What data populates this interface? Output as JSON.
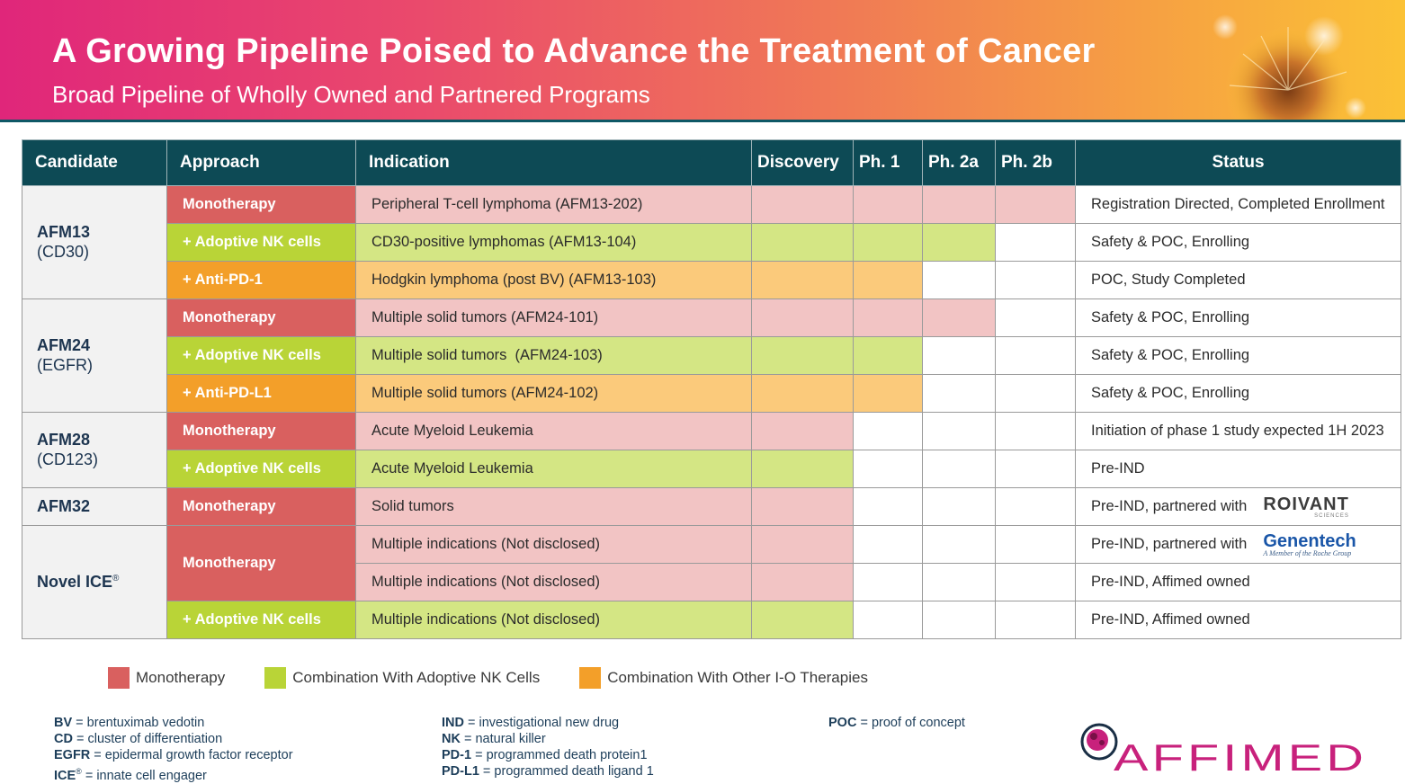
{
  "header": {
    "title": "A Growing Pipeline Poised to Advance the Treatment of Cancer",
    "subtitle": "Broad Pipeline of Wholly Owned and Partnered Programs"
  },
  "table": {
    "columns": {
      "candidate": "Candidate",
      "approach": "Approach",
      "indication": "Indication",
      "discovery": "Discovery",
      "ph1": "Ph. 1",
      "ph2a": "Ph. 2a",
      "ph2b": "Ph. 2b",
      "status": "Status"
    },
    "candidates": {
      "afm13": {
        "name": "AFM13",
        "target": "(CD30)"
      },
      "afm24": {
        "name": "AFM24",
        "target": "(EGFR)"
      },
      "afm28": {
        "name": "AFM28",
        "target": "(CD123)"
      },
      "afm32": {
        "name": "AFM32"
      },
      "novel": {
        "name": "Novel ICE",
        "reg": "®"
      }
    },
    "rows": [
      {
        "approach": "Monotherapy",
        "indication": "Peripheral T-cell lymphoma (AFM13-202)",
        "status": "Registration Directed, Completed Enrollment",
        "progress_phases": 4
      },
      {
        "approach": "+ Adoptive NK cells",
        "indication": "CD30-positive lymphomas (AFM13-104)",
        "status": "Safety & POC, Enrolling",
        "progress_phases": 3
      },
      {
        "approach": "+ Anti-PD-1",
        "indication": "Hodgkin lymphoma (post BV) (AFM13-103)",
        "status": "POC, Study Completed",
        "progress_phases": 2
      },
      {
        "approach": "Monotherapy",
        "indication": "Multiple solid tumors (AFM24-101)",
        "status": "Safety & POC, Enrolling",
        "progress_phases": 3
      },
      {
        "approach": "+ Adoptive NK cells",
        "indication": "Multiple solid tumors  (AFM24-103)",
        "status": "Safety & POC, Enrolling",
        "progress_phases": 2
      },
      {
        "approach": "+ Anti-PD-L1",
        "indication": "Multiple solid tumors (AFM24-102)",
        "status": "Safety & POC, Enrolling",
        "progress_phases": 2
      },
      {
        "approach": "Monotherapy",
        "indication": "Acute Myeloid Leukemia",
        "status": "Initiation of phase 1 study expected 1H 2023",
        "progress_phases": 1
      },
      {
        "approach": "+ Adoptive NK cells",
        "indication": "Acute Myeloid Leukemia",
        "status": "Pre-IND",
        "progress_phases": 1
      },
      {
        "approach": "Monotherapy",
        "indication": "Solid tumors",
        "status": "Pre-IND, partnered with",
        "progress_phases": 1,
        "partner": "ROIVANT",
        "partner_sub": "SCIENCES"
      },
      {
        "approach": "Monotherapy",
        "indication": "Multiple indications (Not disclosed)",
        "status": "Pre-IND, partnered with",
        "progress_phases": 1,
        "partner": "Genentech",
        "partner_sub": "A Member of the Roche Group"
      },
      {
        "indication": "Multiple indications (Not disclosed)",
        "status": "Pre-IND, Affimed owned",
        "progress_phases": 1
      },
      {
        "approach": "+ Adoptive NK cells",
        "indication": "Multiple indications (Not disclosed)",
        "status": "Pre-IND, Affimed owned",
        "progress_phases": 1
      }
    ]
  },
  "legend": [
    {
      "label": "Monotherapy",
      "color": "#d9605f"
    },
    {
      "label": "Combination With Adoptive NK Cells",
      "color": "#b9d437"
    },
    {
      "label": "Combination With Other I-O Therapies",
      "color": "#f39f29"
    }
  ],
  "abbreviations": {
    "col1": [
      {
        "term": "BV",
        "def": " = brentuximab vedotin"
      },
      {
        "term": "CD",
        "def": " = cluster of differentiation"
      },
      {
        "term": "EGFR",
        "def": " = epidermal growth factor receptor"
      },
      {
        "term": "ICE",
        "reg": "®",
        "def": " = innate cell engager"
      }
    ],
    "col2": [
      {
        "term": "IND",
        "def": " = investigational new drug"
      },
      {
        "term": "NK",
        "def": " = natural killer"
      },
      {
        "term": "PD-1",
        "def": " = programmed death protein1"
      },
      {
        "term": "PD-L1",
        "def": " = programmed death ligand 1"
      }
    ],
    "col3": [
      {
        "term": "POC",
        "def": " = proof of concept"
      }
    ]
  },
  "logo": {
    "text": "AFFIMED"
  },
  "colors": {
    "header_bg": "#0d4a55",
    "mono_dark": "#d9605f",
    "mono_light": "#f2c4c4",
    "nk_dark": "#b9d437",
    "nk_light": "#d4e684",
    "io_dark": "#f39f29",
    "io_light": "#fbca7b"
  }
}
